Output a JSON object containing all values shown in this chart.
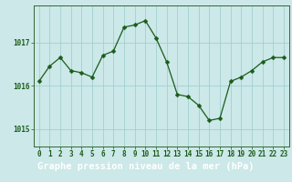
{
  "x": [
    0,
    1,
    2,
    3,
    4,
    5,
    6,
    7,
    8,
    9,
    10,
    11,
    12,
    13,
    14,
    15,
    16,
    17,
    18,
    19,
    20,
    21,
    22,
    23
  ],
  "y": [
    1016.1,
    1016.45,
    1016.65,
    1016.35,
    1016.3,
    1016.2,
    1016.7,
    1016.8,
    1017.35,
    1017.4,
    1017.5,
    1017.1,
    1016.55,
    1015.8,
    1015.75,
    1015.55,
    1015.2,
    1015.25,
    1016.1,
    1016.2,
    1016.35,
    1016.55,
    1016.65,
    1016.65
  ],
  "line_color": "#1a5c1a",
  "marker": "D",
  "marker_size": 2.5,
  "bg_color": "#cce8e8",
  "grid_color": "#99cccc",
  "xlabel": "Graphe pression niveau de la mer (hPa)",
  "xlabel_fontsize": 7.5,
  "yticks": [
    1015,
    1016,
    1017
  ],
  "xticks": [
    0,
    1,
    2,
    3,
    4,
    5,
    6,
    7,
    8,
    9,
    10,
    11,
    12,
    13,
    14,
    15,
    16,
    17,
    18,
    19,
    20,
    21,
    22,
    23
  ],
  "ylim": [
    1014.6,
    1017.85
  ],
  "xlim": [
    -0.5,
    23.5
  ],
  "tick_color": "#1a5c1a",
  "tick_fontsize": 5.5,
  "axis_color": "#336633",
  "bottom_bar_color": "#1a5c1a",
  "label_bar_text_color": "#ffffff"
}
